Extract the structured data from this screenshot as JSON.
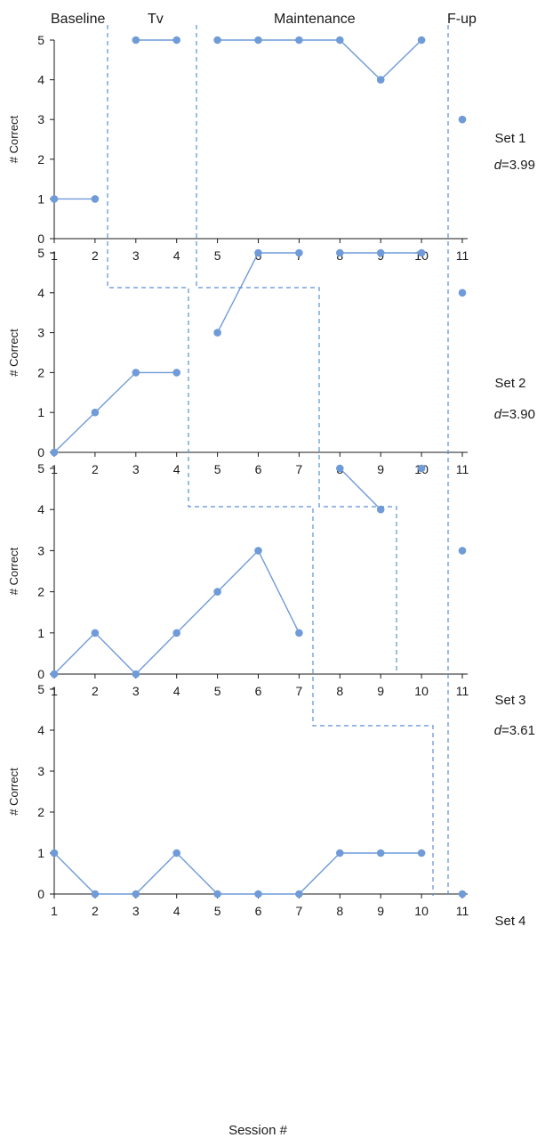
{
  "colors": {
    "series": "#6f9bd8",
    "phase_line": "#5b8fd6",
    "axis": "#1a1a1a"
  },
  "phase_labels": [
    "Baseline",
    "Tv",
    "Maintenance",
    "F-up"
  ],
  "x_axis_label": "Session #",
  "chart_data": [
    {
      "type": "line",
      "set_label": "Set 1",
      "effect_size": "3.99",
      "ylabel": "# Correct",
      "xlim": [
        1,
        11
      ],
      "ylim": [
        0,
        5
      ],
      "x_ticks": [
        1,
        2,
        3,
        4,
        5,
        6,
        7,
        8,
        9,
        10,
        11
      ],
      "y_ticks": [
        0,
        1,
        2,
        3,
        4,
        5
      ],
      "segments": [
        [
          [
            1,
            1
          ],
          [
            2,
            1
          ]
        ],
        [
          [
            3,
            5
          ],
          [
            4,
            5
          ]
        ],
        [
          [
            5,
            5
          ],
          [
            6,
            5
          ],
          [
            7,
            5
          ],
          [
            8,
            5
          ],
          [
            9,
            4
          ],
          [
            10,
            5
          ]
        ],
        [
          [
            11,
            3
          ]
        ]
      ]
    },
    {
      "type": "line",
      "set_label": "Set 2",
      "effect_size": "3.90",
      "ylabel": "# Correct",
      "xlim": [
        1,
        11
      ],
      "ylim": [
        0,
        5
      ],
      "x_ticks": [
        1,
        2,
        3,
        4,
        5,
        6,
        7,
        8,
        9,
        10,
        11
      ],
      "y_ticks": [
        0,
        1,
        2,
        3,
        4,
        5
      ],
      "segments": [
        [
          [
            1,
            0
          ],
          [
            2,
            1
          ],
          [
            3,
            2
          ],
          [
            4,
            2
          ]
        ],
        [
          [
            5,
            3
          ],
          [
            6,
            5
          ],
          [
            7,
            5
          ]
        ],
        [
          [
            8,
            5
          ],
          [
            9,
            5
          ],
          [
            10,
            5
          ]
        ],
        [
          [
            11,
            4
          ]
        ]
      ]
    },
    {
      "type": "line",
      "set_label": "Set 3",
      "effect_size": "3.61",
      "ylabel": "# Correct",
      "xlim": [
        1,
        11
      ],
      "ylim": [
        0,
        5
      ],
      "x_ticks": [
        1,
        2,
        3,
        4,
        5,
        6,
        7,
        8,
        9,
        10,
        11
      ],
      "y_ticks": [
        0,
        1,
        2,
        3,
        4,
        5
      ],
      "segments": [
        [
          [
            1,
            0
          ],
          [
            2,
            1
          ],
          [
            3,
            0
          ],
          [
            4,
            1
          ],
          [
            5,
            2
          ],
          [
            6,
            3
          ],
          [
            7,
            1
          ]
        ],
        [
          [
            8,
            5
          ],
          [
            9,
            4
          ]
        ],
        [
          [
            10,
            5
          ]
        ],
        [
          [
            11,
            3
          ]
        ]
      ]
    },
    {
      "type": "line",
      "set_label": "Set 4",
      "effect_size": "",
      "ylabel": "# Correct",
      "xlim": [
        1,
        11
      ],
      "ylim": [
        0,
        5
      ],
      "x_ticks": [
        1,
        2,
        3,
        4,
        5,
        6,
        7,
        8,
        9,
        10,
        11
      ],
      "y_ticks": [
        0,
        1,
        2,
        3,
        4,
        5
      ],
      "segments": [
        [
          [
            1,
            1
          ],
          [
            2,
            0
          ],
          [
            3,
            0
          ],
          [
            4,
            1
          ],
          [
            5,
            0
          ],
          [
            6,
            0
          ],
          [
            7,
            0
          ],
          [
            8,
            1
          ],
          [
            9,
            1
          ],
          [
            10,
            1
          ]
        ],
        [
          [
            11,
            0
          ]
        ]
      ]
    }
  ]
}
